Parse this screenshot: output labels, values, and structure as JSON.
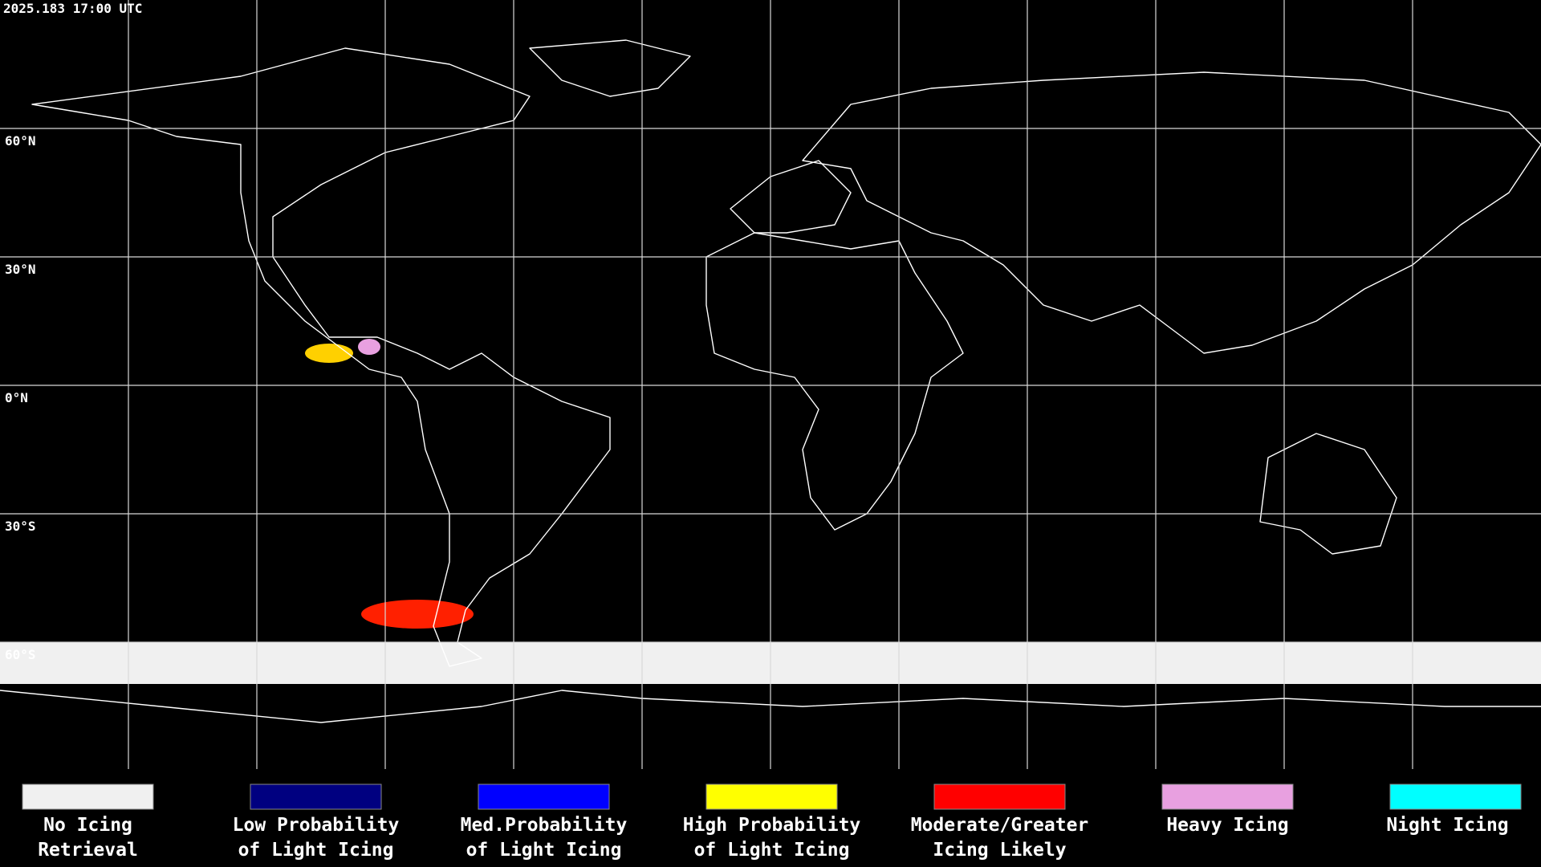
{
  "header": {
    "timestamp": "2025.183 17:00 UTC"
  },
  "map": {
    "lat_labels": [
      "60°N",
      "30°N",
      "0°N",
      "30°S",
      "60°S"
    ]
  },
  "legend": {
    "items": [
      {
        "label": [
          "No Icing",
          "Retrieval"
        ],
        "color": "#f0f0f0"
      },
      {
        "label": [
          "Low Probability",
          "of Light Icing"
        ],
        "color": "#000080"
      },
      {
        "label": [
          "Med.Probability",
          "of Light Icing"
        ],
        "color": "#0000ff"
      },
      {
        "label": [
          "High Probability",
          "of Light Icing"
        ],
        "color": "#ffff00"
      },
      {
        "label": [
          "Moderate/Greater",
          "Icing Likely"
        ],
        "color": "#ff0000"
      },
      {
        "label": [
          "Heavy Icing"
        ],
        "color": "#e8a0e0"
      },
      {
        "label": [
          "Night Icing"
        ],
        "color": "#00ffff"
      }
    ]
  }
}
